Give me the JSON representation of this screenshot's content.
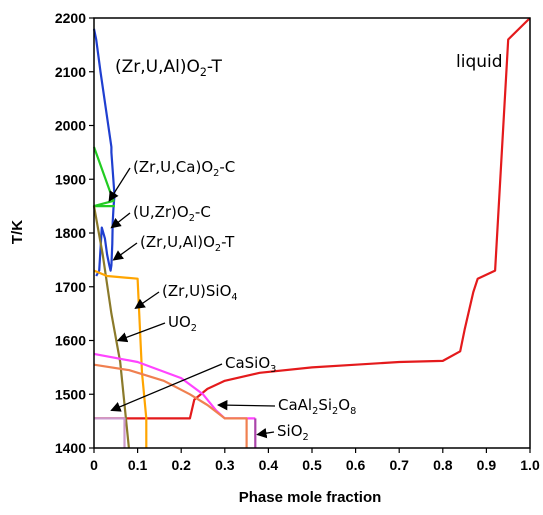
{
  "chart_data": {
    "type": "line",
    "xlabel": "Phase mole fraction",
    "ylabel": "T/K",
    "xlim": [
      0,
      1.0
    ],
    "ylim": [
      1400,
      2200
    ],
    "xticks": [
      "0",
      "0.1",
      "0.2",
      "0.3",
      "0.4",
      "0.5",
      "0.6",
      "0.7",
      "0.8",
      "0.9",
      "1.0"
    ],
    "yticks": [
      "1400",
      "1500",
      "1600",
      "1700",
      "1800",
      "1900",
      "2000",
      "2100",
      "2200"
    ],
    "legend": "none",
    "grid": false,
    "series": [
      {
        "color": "#e41a1c",
        "x": [
          0,
          0.22,
          0.23,
          0.26,
          0.3,
          0.38,
          0.5,
          0.6,
          0.7,
          0.8,
          0.84,
          0.85,
          0.87,
          0.88,
          0.92,
          0.95,
          1.0
        ],
        "y": [
          1455,
          1455,
          1490,
          1510,
          1525,
          1540,
          1550,
          1555,
          1560,
          1562,
          1580,
          1620,
          1690,
          1715,
          1730,
          2160,
          2200
        ]
      },
      {
        "color": "#1f3fd0",
        "x": [
          0.0,
          0.005,
          0.015,
          0.04,
          0.04,
          0.047,
          0.045,
          0.043,
          0.042,
          0.04,
          0.038,
          0.035,
          0.03,
          0.025,
          0.018,
          0.012,
          0.005
        ],
        "y": [
          2180,
          2160,
          2100,
          1960,
          1950,
          1870,
          1850,
          1820,
          1780,
          1740,
          1730,
          1740,
          1760,
          1790,
          1810,
          1730,
          1720
        ]
      },
      {
        "color": "#22cc22",
        "x": [
          0.0,
          0.04,
          0.045,
          0.0,
          0.04,
          0.048
        ],
        "y": [
          1960,
          1870,
          1860,
          1850,
          1850,
          1850
        ]
      },
      {
        "color": "#8b7a2a",
        "x": [
          0.0,
          0.02,
          0.04,
          0.06,
          0.08
        ],
        "y": [
          1850,
          1760,
          1650,
          1560,
          1400
        ]
      },
      {
        "color": "#ffa500",
        "x": [
          0.0,
          0.03,
          0.1,
          0.11,
          0.12,
          0.12
        ],
        "y": [
          1730,
          1720,
          1715,
          1540,
          1455,
          1400
        ]
      },
      {
        "color": "#ff44ff",
        "x": [
          0.0,
          0.1,
          0.2,
          0.25,
          0.28,
          0.3,
          0.37
        ],
        "y": [
          1575,
          1560,
          1530,
          1500,
          1470,
          1455,
          1455
        ]
      },
      {
        "color": "#f08050",
        "x": [
          0.0,
          0.08,
          0.16,
          0.22,
          0.26,
          0.3,
          0.35,
          0.35
        ],
        "y": [
          1555,
          1545,
          1525,
          1500,
          1480,
          1455,
          1455,
          1400
        ]
      },
      {
        "color": "#cc99cc",
        "x": [
          0.0,
          0.07,
          0.07
        ],
        "y": [
          1455,
          1455,
          1400
        ]
      },
      {
        "color": "#aa44aa",
        "x": [
          0.37,
          0.37
        ],
        "y": [
          1455,
          1400
        ]
      }
    ],
    "annotations": [
      {
        "label_pre": "(Zr,U,Al)O",
        "sub": "2",
        "label_post": "-T",
        "target_x": null,
        "target_y": null
      },
      {
        "label_pre": "liquid",
        "sub": "",
        "label_post": "",
        "target_x": null,
        "target_y": null
      },
      {
        "label_pre": "(Zr,U,Ca)O",
        "sub": "2",
        "label_post": "-C",
        "target_x": 0.035,
        "target_y": 1860
      },
      {
        "label_pre": "(U,Zr)O",
        "sub": "2",
        "label_post": "-C",
        "target_x": 0.04,
        "target_y": 1810
      },
      {
        "label_pre": "(Zr,U,Al)O",
        "sub": "2",
        "label_post": "-T",
        "target_x": 0.045,
        "target_y": 1750
      },
      {
        "label_pre": "(Zr,U)SiO",
        "sub": "4",
        "label_post": "",
        "target_x": 0.095,
        "target_y": 1660
      },
      {
        "label_pre": "UO",
        "sub": "2",
        "label_post": "",
        "target_x": 0.055,
        "target_y": 1600
      },
      {
        "label_pre": "CaSiO",
        "sub": "3",
        "label_post": "",
        "target_x": 0.04,
        "target_y": 1470
      },
      {
        "label_pre": "CaAl",
        "sub": "2",
        "label_post": "Si",
        "sub2": "2",
        "label_post2": "O",
        "sub3": "8",
        "target_x": 0.285,
        "target_y": 1480
      },
      {
        "label_pre": "SiO",
        "sub": "2",
        "label_post": "",
        "target_x": 0.375,
        "target_y": 1425
      }
    ]
  }
}
